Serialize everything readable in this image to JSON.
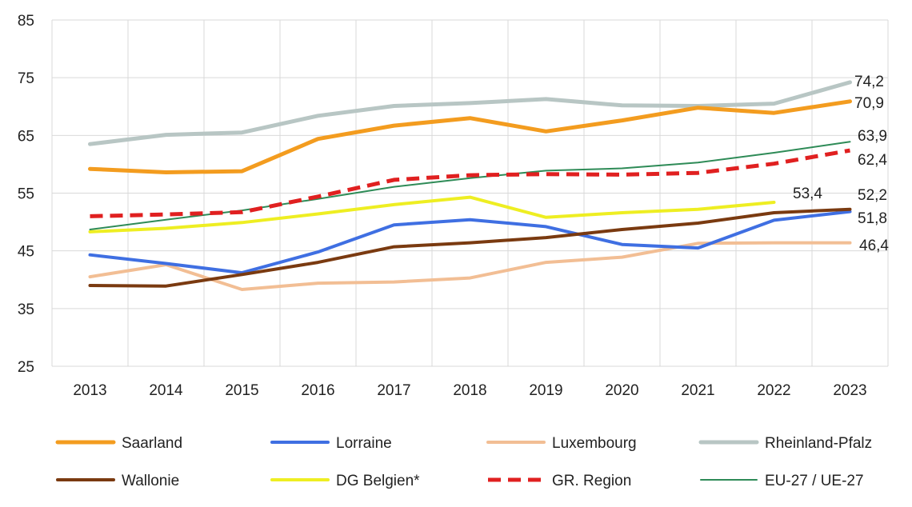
{
  "chart_data": {
    "type": "line",
    "title": "",
    "xlabel": "",
    "ylabel": "",
    "ylim": [
      25,
      85
    ],
    "yticks": [
      25,
      35,
      45,
      55,
      65,
      75,
      85
    ],
    "x": [
      "2013",
      "2014",
      "2015",
      "2016",
      "2017",
      "2018",
      "2019",
      "2020",
      "2021",
      "2022",
      "2023"
    ],
    "grid": true,
    "legend_position": "bottom",
    "series": [
      {
        "name": "Saarland",
        "color": "#F39C1F",
        "style": "solid",
        "width": 5,
        "values": [
          59.2,
          58.6,
          58.8,
          64.4,
          66.7,
          68.0,
          65.7,
          67.6,
          69.8,
          68.9,
          70.9
        ],
        "end_label": "70,9"
      },
      {
        "name": "Lorraine",
        "color": "#3F6FE2",
        "style": "solid",
        "width": 4,
        "values": [
          44.3,
          42.8,
          41.2,
          44.8,
          49.5,
          50.4,
          49.2,
          46.1,
          45.5,
          50.3,
          51.8
        ],
        "end_label": "51,8"
      },
      {
        "name": "Luxembourg",
        "color": "#F2BE94",
        "style": "solid",
        "width": 4,
        "values": [
          40.5,
          42.6,
          38.3,
          39.4,
          39.6,
          40.3,
          43.0,
          43.9,
          46.3,
          46.4,
          46.4
        ],
        "end_label": "46,4"
      },
      {
        "name": "Rheinland-Pfalz",
        "color": "#B8C6C4",
        "style": "solid",
        "width": 5,
        "values": [
          63.5,
          65.1,
          65.5,
          68.4,
          70.1,
          70.6,
          71.3,
          70.2,
          70.1,
          70.5,
          74.2
        ],
        "end_label": "74,2"
      },
      {
        "name": "Wallonie",
        "color": "#7A3A10",
        "style": "solid",
        "width": 4,
        "values": [
          39.0,
          38.9,
          40.9,
          43.0,
          45.7,
          46.4,
          47.3,
          48.7,
          49.8,
          51.6,
          52.2
        ],
        "end_label": "52,2"
      },
      {
        "name": "DG Belgien*",
        "color": "#EEEE22",
        "style": "solid",
        "width": 4,
        "values": [
          48.3,
          48.9,
          49.9,
          51.4,
          53.0,
          54.3,
          50.8,
          51.6,
          52.2,
          53.4,
          null
        ],
        "end_label": "53,4"
      },
      {
        "name": "GR. Region",
        "color": "#E02020",
        "style": "dashed",
        "width": 5,
        "values": [
          51.0,
          51.3,
          51.7,
          54.4,
          57.3,
          58.1,
          58.3,
          58.2,
          58.5,
          60.1,
          62.4
        ],
        "end_label": "62,4"
      },
      {
        "name": "EU-27 / UE-27",
        "color": "#2E8B57",
        "style": "solid",
        "width": 2,
        "values": [
          48.7,
          50.4,
          52.0,
          54.0,
          56.1,
          57.6,
          58.9,
          59.3,
          60.3,
          62.0,
          63.9
        ],
        "end_label": "63,9"
      }
    ]
  }
}
